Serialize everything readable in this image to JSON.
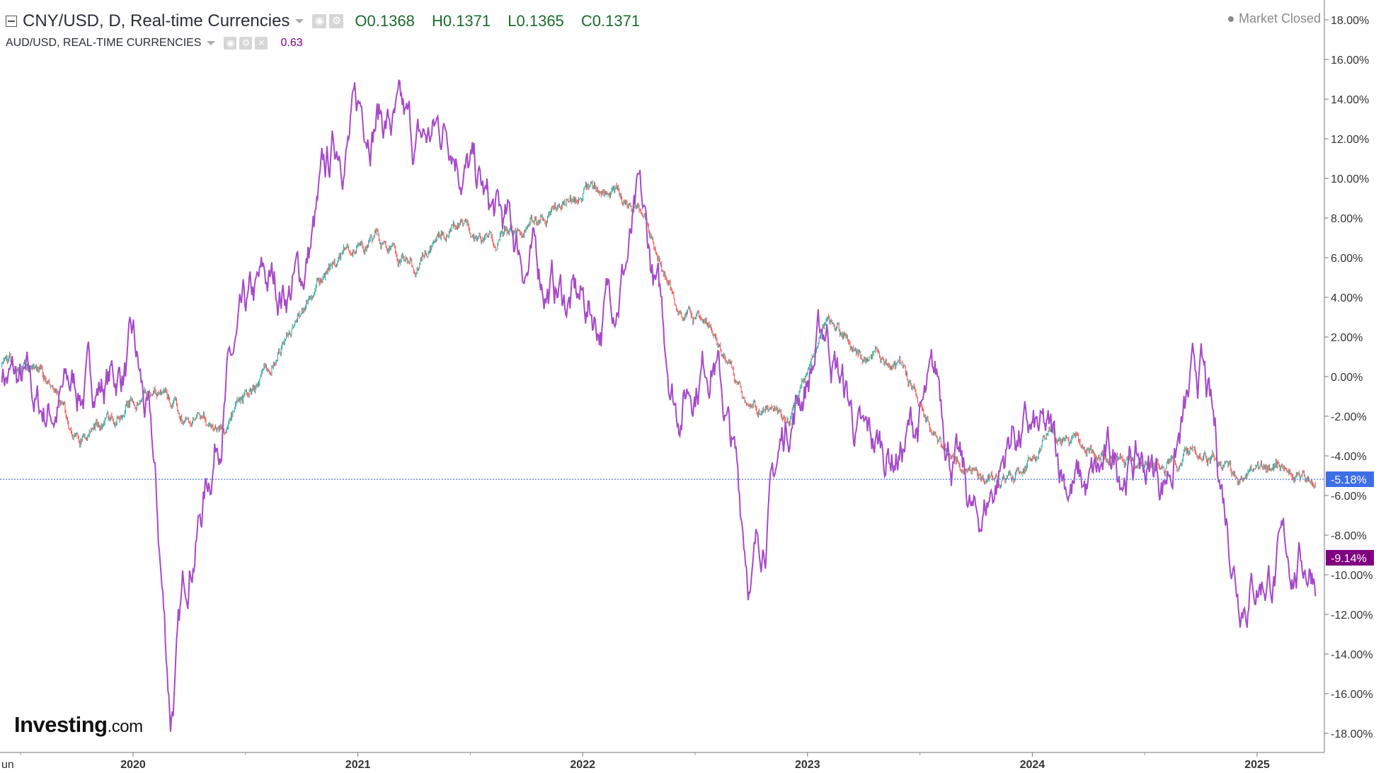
{
  "header": {
    "main_series_title": "CNY/USD, D, Real-time Currencies",
    "ohlc": {
      "open": "O0.1368",
      "high": "H0.1371",
      "low": "L0.1365",
      "close": "C0.1371"
    },
    "compare_series_title": "AUD/USD, REAL-TIME CURRENCIES",
    "compare_series_value": "0.63",
    "market_status": "Market Closed"
  },
  "icons": {
    "collapse": "collapse-icon",
    "settings": "gear-icon",
    "close": "close-icon",
    "status": "status-dot-icon"
  },
  "logo": {
    "main": "Investing",
    "suffix": ".com"
  },
  "colors": {
    "cny_up": "#26a69a",
    "cny_down": "#ef5350",
    "aud_line": "#a64ac9",
    "cny_badge": "#3d6ee6",
    "aud_badge": "#800080",
    "reference_line": "#5b7fe0"
  },
  "chart_data": {
    "type": "line",
    "x_axis": {
      "ticks": [
        "un",
        "2020",
        "2021",
        "2022",
        "2023",
        "2024",
        "2025"
      ],
      "range": [
        "2019-06",
        "2025-04"
      ]
    },
    "y_axis": {
      "position": "right",
      "unit": "%",
      "ticks": [
        "18.00%",
        "16.00%",
        "14.00%",
        "12.00%",
        "10.00%",
        "8.00%",
        "6.00%",
        "4.00%",
        "2.00%",
        "0.00%",
        "-2.00%",
        "-4.00%",
        "-6.00%",
        "-8.00%",
        "-10.00%",
        "-12.00%",
        "-14.00%",
        "-16.00%",
        "-18.00%"
      ],
      "ylim": [
        -18,
        18
      ]
    },
    "series": [
      {
        "name": "CNY/USD",
        "style": "candlestick",
        "x": [
          "2019-06",
          "2019-08",
          "2019-10",
          "2019-12",
          "2020-02",
          "2020-04",
          "2020-06",
          "2020-08",
          "2020-10",
          "2020-12",
          "2021-02",
          "2021-04",
          "2021-06",
          "2021-08",
          "2021-10",
          "2021-12",
          "2022-02",
          "2022-04",
          "2022-06",
          "2022-08",
          "2022-10",
          "2022-12",
          "2023-02",
          "2023-04",
          "2023-06",
          "2023-08",
          "2023-10",
          "2023-12",
          "2024-02",
          "2024-04",
          "2024-06",
          "2024-08",
          "2024-10",
          "2024-12",
          "2025-02",
          "2025-04"
        ],
        "values": [
          0.5,
          0.3,
          -3.2,
          -2.0,
          -0.5,
          -2.3,
          -2.5,
          0.0,
          3.5,
          6.0,
          7.0,
          5.3,
          7.8,
          6.8,
          7.6,
          8.6,
          9.5,
          8.5,
          3.7,
          2.0,
          -1.5,
          -2.5,
          3.0,
          0.8,
          0.5,
          -3.5,
          -5.0,
          -5.2,
          -3.0,
          -3.8,
          -4.3,
          -4.6,
          -3.5,
          -5.2,
          -4.5,
          -5.18
        ],
        "last_value_label": "-5.18%"
      },
      {
        "name": "AUD/USD",
        "style": "line",
        "x": [
          "2019-06",
          "2019-08",
          "2019-10",
          "2019-12",
          "2020-01",
          "2020-02",
          "2020-03",
          "2020-04",
          "2020-05",
          "2020-06",
          "2020-08",
          "2020-10",
          "2020-12",
          "2021-02",
          "2021-04",
          "2021-06",
          "2021-08",
          "2021-10",
          "2021-12",
          "2022-02",
          "2022-04",
          "2022-06",
          "2022-08",
          "2022-10",
          "2022-12",
          "2023-02",
          "2023-04",
          "2023-06",
          "2023-08",
          "2023-10",
          "2023-12",
          "2024-02",
          "2024-04",
          "2024-06",
          "2024-08",
          "2024-10",
          "2024-12",
          "2025-02",
          "2025-04"
        ],
        "values": [
          0.5,
          -2.0,
          -0.5,
          0.0,
          1.0,
          -4.0,
          -17.0,
          -9.0,
          -5.0,
          0.0,
          4.0,
          5.0,
          12.0,
          14.0,
          11.0,
          13.0,
          8.0,
          6.0,
          4.0,
          3.0,
          8.0,
          -1.0,
          2.0,
          -10.0,
          -2.0,
          2.5,
          -4.0,
          -3.5,
          -1.0,
          -8.0,
          -2.5,
          -4.0,
          -6.0,
          -4.0,
          -5.0,
          0.0,
          -10.0,
          -9.5,
          -9.14
        ],
        "last_value_label": "-9.14%"
      }
    ],
    "reference_line": -5.18
  }
}
